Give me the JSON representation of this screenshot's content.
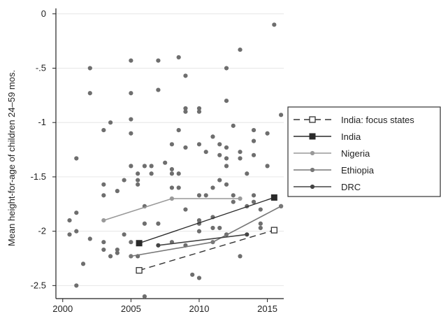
{
  "chart_data": {
    "type": "scatter",
    "title": "",
    "xlabel": "",
    "ylabel": "Mean height-for-age of children 24–59 mos.",
    "xlim": [
      1999.5,
      2016.2
    ],
    "ylim": [
      -2.62,
      0.05
    ],
    "xticks": [
      2000,
      2005,
      2010,
      2015
    ],
    "xtick_labels": [
      "2000",
      "2005",
      "2010",
      "2015"
    ],
    "yticks": [
      0,
      -0.5,
      -1,
      -1.5,
      -2,
      -2.5
    ],
    "ytick_labels": [
      "0",
      "-.5",
      "-1",
      "-1.5",
      "-2",
      "-2.5"
    ],
    "grid": "horizontal",
    "legend_position": "right",
    "colors": {
      "scatter": "#6e6e6e",
      "india_focus": "#333333",
      "india": "#2a2a2a",
      "nigeria": "#999999",
      "ethiopia": "#777777",
      "drc": "#444444",
      "grid": "#e6e6e6",
      "axis": "#222222"
    },
    "scatter_points": [
      [
        2000.5,
        -1.9
      ],
      [
        2000.5,
        -2.03
      ],
      [
        2001,
        -1.33
      ],
      [
        2001,
        -1.83
      ],
      [
        2001,
        -2.0
      ],
      [
        2001,
        -2.5
      ],
      [
        2001.5,
        -2.3
      ],
      [
        2002,
        -0.5
      ],
      [
        2002,
        -0.73
      ],
      [
        2002,
        -2.07
      ],
      [
        2003,
        -1.07
      ],
      [
        2003,
        -1.57
      ],
      [
        2003,
        -1.67
      ],
      [
        2003,
        -2.1
      ],
      [
        2003,
        -2.17
      ],
      [
        2003.5,
        -1.0
      ],
      [
        2003.5,
        -2.23
      ],
      [
        2004,
        -1.63
      ],
      [
        2004,
        -2.2
      ],
      [
        2004,
        -2.17
      ],
      [
        2004.5,
        -1.53
      ],
      [
        2004.5,
        -2.03
      ],
      [
        2005,
        -0.43
      ],
      [
        2005,
        -0.73
      ],
      [
        2005,
        -0.97
      ],
      [
        2005,
        -1.1
      ],
      [
        2005,
        -1.4
      ],
      [
        2005,
        -2.1
      ],
      [
        2005.5,
        -1.47
      ],
      [
        2005.5,
        -1.53
      ],
      [
        2005.5,
        -1.57
      ],
      [
        2005.5,
        -2.23
      ],
      [
        2006,
        -1.4
      ],
      [
        2006,
        -1.77
      ],
      [
        2006,
        -1.93
      ],
      [
        2006,
        -2.6
      ],
      [
        2006.5,
        -1.4
      ],
      [
        2006.5,
        -1.47
      ],
      [
        2007,
        -0.43
      ],
      [
        2007,
        -0.7
      ],
      [
        2007,
        -1.93
      ],
      [
        2007.5,
        -1.37
      ],
      [
        2008,
        -1.2
      ],
      [
        2008,
        -1.43
      ],
      [
        2008,
        -1.47
      ],
      [
        2008,
        -1.6
      ],
      [
        2008,
        -2.1
      ],
      [
        2008.5,
        -0.4
      ],
      [
        2008.5,
        -1.07
      ],
      [
        2008.5,
        -1.47
      ],
      [
        2008.5,
        -1.6
      ],
      [
        2009,
        -0.57
      ],
      [
        2009,
        -0.87
      ],
      [
        2009,
        -0.9
      ],
      [
        2009,
        -1.23
      ],
      [
        2009,
        -1.8
      ],
      [
        2009,
        -2.13
      ],
      [
        2009.5,
        -2.4
      ],
      [
        2010,
        -0.87
      ],
      [
        2010,
        -0.9
      ],
      [
        2010,
        -1.2
      ],
      [
        2010,
        -1.67
      ],
      [
        2010,
        -1.9
      ],
      [
        2010,
        -1.93
      ],
      [
        2010,
        -2.0
      ],
      [
        2010,
        -2.43
      ],
      [
        2010.5,
        -1.27
      ],
      [
        2010.5,
        -1.67
      ],
      [
        2011,
        -1.13
      ],
      [
        2011,
        -1.6
      ],
      [
        2011,
        -1.87
      ],
      [
        2011,
        -1.97
      ],
      [
        2011.5,
        -1.2
      ],
      [
        2011.5,
        -1.3
      ],
      [
        2011.5,
        -1.53
      ],
      [
        2011.5,
        -1.97
      ],
      [
        2012,
        -0.5
      ],
      [
        2012,
        -0.8
      ],
      [
        2012,
        -1.23
      ],
      [
        2012,
        -1.33
      ],
      [
        2012,
        -1.4
      ],
      [
        2012,
        -1.57
      ],
      [
        2012,
        -2.03
      ],
      [
        2012.5,
        -1.03
      ],
      [
        2012.5,
        -1.67
      ],
      [
        2012.5,
        -1.73
      ],
      [
        2013,
        -0.33
      ],
      [
        2013,
        -1.27
      ],
      [
        2013,
        -1.33
      ],
      [
        2013,
        -2.23
      ],
      [
        2013.5,
        -1.47
      ],
      [
        2013.5,
        -1.77
      ],
      [
        2014,
        -1.07
      ],
      [
        2014,
        -1.17
      ],
      [
        2014,
        -1.3
      ],
      [
        2014,
        -1.67
      ],
      [
        2014,
        -1.73
      ],
      [
        2014.5,
        -1.8
      ],
      [
        2014.5,
        -1.93
      ],
      [
        2014.5,
        -1.97
      ],
      [
        2015,
        -1.1
      ],
      [
        2015,
        -1.4
      ],
      [
        2015.5,
        -0.1
      ],
      [
        2016,
        -0.93
      ],
      [
        2016,
        -1.77
      ]
    ],
    "series": [
      {
        "name": "India: focus states",
        "style": "dashed",
        "marker": "open-square",
        "x": [
          2005.6,
          2015.5
        ],
        "y": [
          -2.36,
          -1.99
        ]
      },
      {
        "name": "India",
        "style": "solid",
        "marker": "filled-square",
        "x": [
          2005.6,
          2015.5
        ],
        "y": [
          -2.11,
          -1.69
        ]
      },
      {
        "name": "Nigeria",
        "style": "solid",
        "marker": "circle",
        "x": [
          2003,
          2008,
          2013
        ],
        "y": [
          -1.9,
          -1.7,
          -1.7
        ]
      },
      {
        "name": "Ethiopia",
        "style": "solid",
        "marker": "circle",
        "x": [
          2005,
          2011,
          2016
        ],
        "y": [
          -2.23,
          -2.1,
          -1.77
        ]
      },
      {
        "name": "DRC",
        "style": "solid",
        "marker": "circle",
        "x": [
          2007,
          2013.5
        ],
        "y": [
          -2.13,
          -2.03
        ]
      }
    ]
  }
}
